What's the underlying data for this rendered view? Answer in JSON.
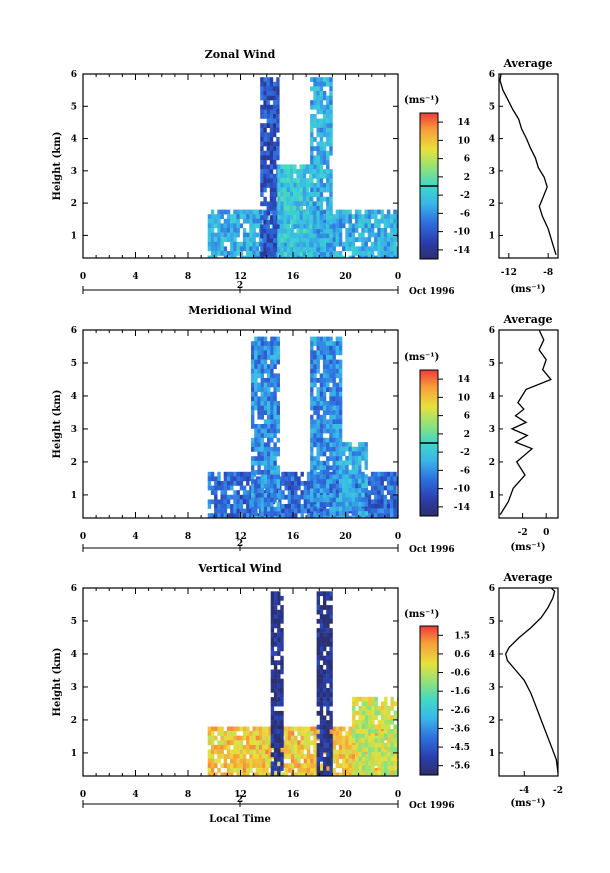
{
  "chart_data": [
    {
      "type": "heatmap",
      "title": "Zonal Wind",
      "xlabel": "",
      "ylabel": "Height (km)",
      "xlim": [
        0,
        24
      ],
      "ylim": [
        0.3,
        6
      ],
      "xticks": [
        "0",
        "4",
        "8",
        "12",
        "16",
        "20",
        "0"
      ],
      "yticks": [
        "1",
        "2",
        "3",
        "4",
        "5",
        "6"
      ],
      "date_marker": "2",
      "date_label": "Oct 1996",
      "colorbar": {
        "label": "(ms⁻¹)",
        "range": [
          -15,
          15
        ],
        "ticks": [
          "14",
          "10",
          "6",
          "2",
          "-2",
          "-6",
          "-10",
          "-14"
        ],
        "zero_marker": 0
      },
      "data_regions": [
        {
          "x_start": 9.5,
          "x_end": 24,
          "y_top": 1.8,
          "value": -4
        },
        {
          "x_start": 13.5,
          "x_end": 14.8,
          "y_top": 5.9,
          "value": -10
        },
        {
          "x_start": 17.3,
          "x_end": 18.8,
          "y_top": 5.9,
          "value": -4
        },
        {
          "x_start": 14.8,
          "x_end": 17.3,
          "y_top": 3.2,
          "value": -2
        }
      ],
      "profile": {
        "title": "Average",
        "xlabel": "(ms⁻¹)",
        "xlim": [
          -13,
          -7
        ],
        "xticks": [
          "-12",
          "-8"
        ],
        "yticks": [
          "1",
          "2",
          "3",
          "4",
          "5",
          "6"
        ],
        "x": [
          -7.2,
          -7.6,
          -8.0,
          -8.6,
          -8.9,
          -8.5,
          -8.1,
          -8.4,
          -9.0,
          -9.3,
          -9.8,
          -10.2,
          -10.7,
          -11.0,
          -11.6,
          -12.1,
          -12.6,
          -12.9,
          -12.8
        ],
        "y": [
          0.4,
          0.8,
          1.2,
          1.6,
          1.9,
          2.2,
          2.5,
          2.8,
          3.1,
          3.4,
          3.7,
          4.0,
          4.3,
          4.6,
          4.9,
          5.2,
          5.5,
          5.8,
          6.0
        ]
      }
    },
    {
      "type": "heatmap",
      "title": "Meridional Wind",
      "xlabel": "",
      "ylabel": "Height (km)",
      "xlim": [
        0,
        24
      ],
      "ylim": [
        0.3,
        6
      ],
      "xticks": [
        "0",
        "4",
        "8",
        "12",
        "16",
        "20",
        "0"
      ],
      "yticks": [
        "1",
        "2",
        "3",
        "4",
        "5",
        "6"
      ],
      "date_marker": "2",
      "date_label": "Oct 1996",
      "colorbar": {
        "label": "(ms⁻¹)",
        "range": [
          -15,
          15
        ],
        "ticks": [
          "14",
          "10",
          "6",
          "2",
          "-2",
          "-6",
          "-10",
          "-14"
        ],
        "zero_marker": 0
      },
      "data_regions": [
        {
          "x_start": 9.5,
          "x_end": 24,
          "y_top": 1.7,
          "value": -8
        },
        {
          "x_start": 12.8,
          "x_end": 14.8,
          "y_top": 5.8,
          "value": -6
        },
        {
          "x_start": 17.3,
          "x_end": 19.5,
          "y_top": 5.8,
          "value": -6
        },
        {
          "x_start": 19.5,
          "x_end": 21.5,
          "y_top": 2.6,
          "value": -4
        }
      ],
      "profile": {
        "title": "Average",
        "xlabel": "(ms⁻¹)",
        "xlim": [
          -4,
          1
        ],
        "xticks": [
          "-2",
          "0"
        ],
        "yticks": [
          "1",
          "2",
          "3",
          "4",
          "5",
          "6"
        ],
        "x": [
          -3.9,
          -3.2,
          -2.8,
          -1.8,
          -2.5,
          -1.2,
          -2.6,
          -1.6,
          -2.9,
          -1.7,
          -2.6,
          -1.9,
          -2.4,
          -1.7,
          0.4,
          -0.3,
          0.0,
          -0.6,
          -0.2,
          -0.6
        ],
        "y": [
          0.4,
          0.8,
          1.2,
          1.6,
          2.0,
          2.4,
          2.6,
          2.8,
          3.0,
          3.2,
          3.4,
          3.6,
          3.8,
          4.2,
          4.5,
          4.8,
          5.1,
          5.4,
          5.7,
          6.0
        ]
      }
    },
    {
      "type": "heatmap",
      "title": "Vertical Wind",
      "xlabel": "Local Time",
      "ylabel": "Height (km)",
      "xlim": [
        0,
        24
      ],
      "ylim": [
        0.3,
        6
      ],
      "xticks": [
        "0",
        "4",
        "8",
        "12",
        "16",
        "20",
        "0"
      ],
      "yticks": [
        "1",
        "2",
        "3",
        "4",
        "5",
        "6"
      ],
      "date_marker": "2",
      "date_label": "Oct 1996",
      "colorbar": {
        "label": "(ms⁻¹)",
        "range": [
          -6,
          2
        ],
        "ticks": [
          "1.5",
          "0.6",
          "-0.6",
          "-1.6",
          "-2.6",
          "-3.6",
          "-4.5",
          "-5.6"
        ],
        "zero_marker": null
      },
      "data_regions": [
        {
          "x_start": 9.5,
          "x_end": 24,
          "y_top": 1.8,
          "value": 0.4
        },
        {
          "x_start": 14.3,
          "x_end": 15.2,
          "y_top": 5.9,
          "value": -5.6
        },
        {
          "x_start": 17.8,
          "x_end": 18.8,
          "y_top": 5.9,
          "value": -5.6
        },
        {
          "x_start": 20.5,
          "x_end": 24,
          "y_top": 2.7,
          "value": -0.4
        }
      ],
      "profile": {
        "title": "Average",
        "xlabel": "(ms⁻¹)",
        "xlim": [
          -5.5,
          -2
        ],
        "xticks": [
          "-4",
          "-2"
        ],
        "yticks": [
          "1",
          "2",
          "3",
          "4",
          "5",
          "6"
        ],
        "x": [
          -2.0,
          -2.1,
          -2.4,
          -2.7,
          -3.0,
          -3.3,
          -3.6,
          -4.0,
          -4.5,
          -5.0,
          -5.1,
          -4.9,
          -4.3,
          -3.6,
          -3.0,
          -2.6,
          -2.3,
          -2.2,
          -2.4
        ],
        "y": [
          0.4,
          0.8,
          1.2,
          1.6,
          2.0,
          2.4,
          2.8,
          3.2,
          3.5,
          3.8,
          4.0,
          4.2,
          4.5,
          4.8,
          5.1,
          5.4,
          5.7,
          5.9,
          6.0
        ]
      }
    }
  ]
}
